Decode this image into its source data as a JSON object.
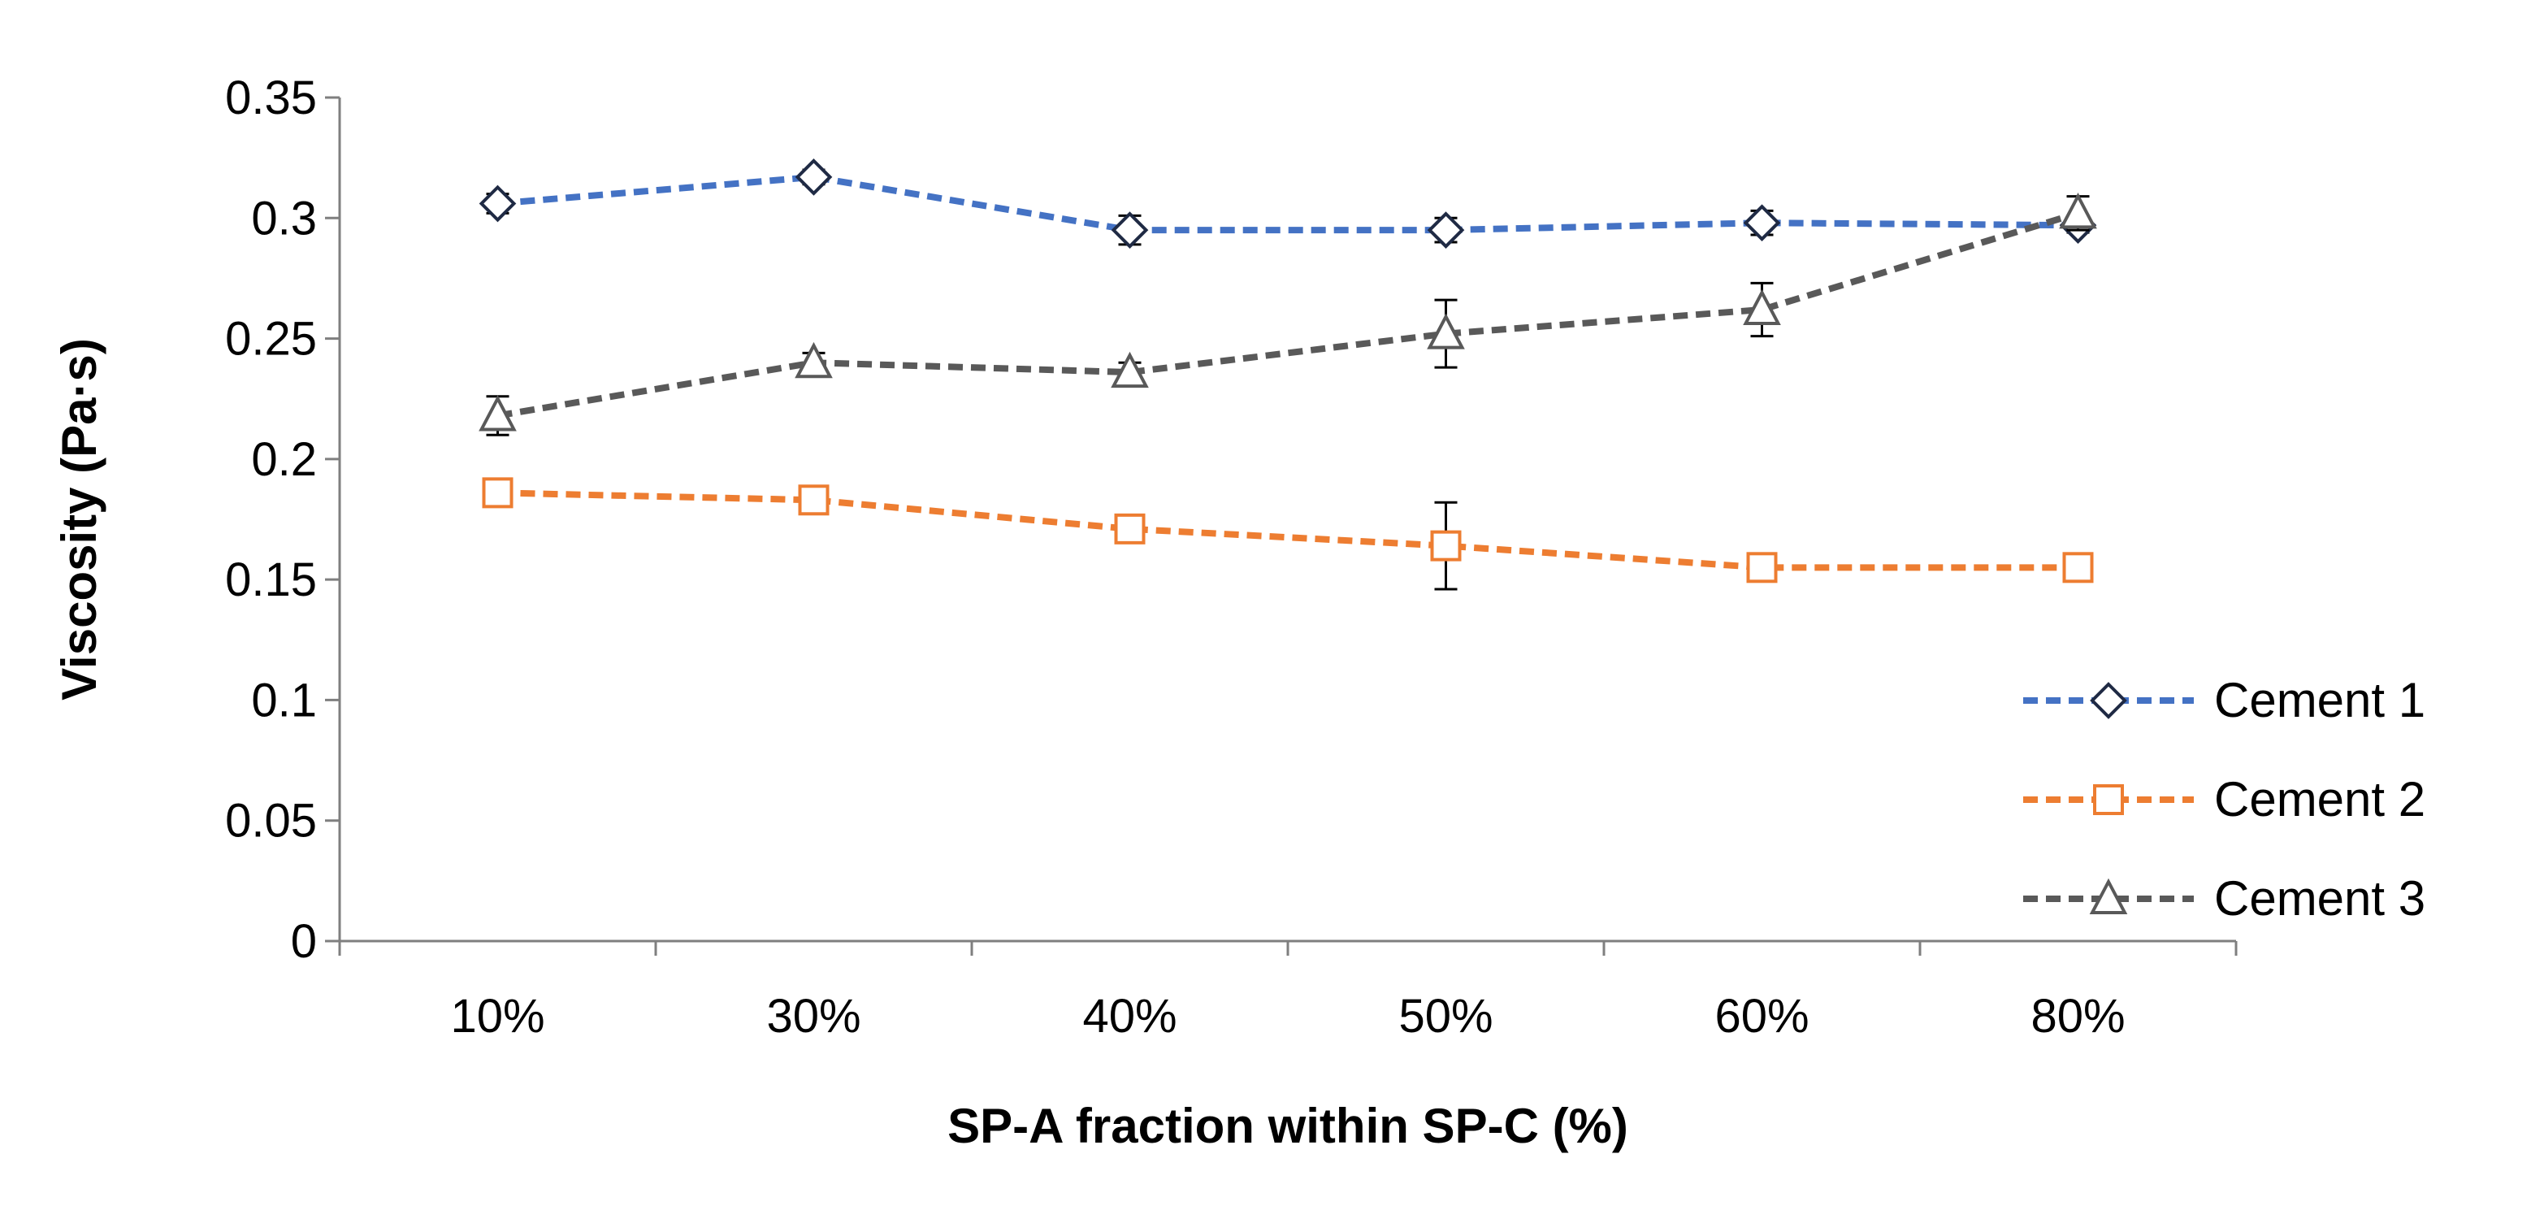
{
  "chart_data": {
    "type": "line",
    "title": "",
    "xlabel": "SP-A fraction within SP-C (%)",
    "ylabel": "Viscosity (Pa·s)",
    "categories": [
      "10%",
      "30%",
      "40%",
      "50%",
      "60%",
      "80%"
    ],
    "ylim": [
      0,
      0.35
    ],
    "yticks": [
      "0",
      "0.05",
      "0.1",
      "0.15",
      "0.2",
      "0.25",
      "0.3",
      "0.35"
    ],
    "grid": false,
    "legend": "right",
    "series": [
      {
        "name": "Cement 1",
        "color": "#4472C4",
        "marker": "diamond",
        "values": [
          0.306,
          0.317,
          0.295,
          0.295,
          0.298,
          0.297
        ],
        "errors": [
          0.004,
          0.003,
          0.006,
          0.005,
          0.005,
          0.003
        ]
      },
      {
        "name": "Cement 2",
        "color": "#ED7D31",
        "marker": "square",
        "values": [
          0.186,
          0.183,
          0.171,
          0.164,
          0.155,
          0.155
        ],
        "errors": [
          0.001,
          0.005,
          0.005,
          0.018,
          0.005,
          0.005
        ]
      },
      {
        "name": "Cement 3",
        "color": "#595959",
        "marker": "triangle",
        "values": [
          0.218,
          0.24,
          0.236,
          0.252,
          0.262,
          0.302
        ],
        "errors": [
          0.008,
          0.004,
          0.004,
          0.014,
          0.011,
          0.007
        ]
      }
    ]
  }
}
